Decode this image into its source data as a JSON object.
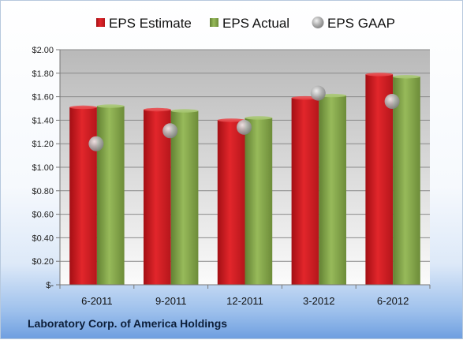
{
  "chart_data": {
    "type": "bar",
    "title": "",
    "xlabel": "",
    "ylabel": "",
    "categories": [
      "6-2011",
      "9-2011",
      "12-2011",
      "3-2012",
      "6-2012"
    ],
    "series": [
      {
        "name": "EPS Estimate",
        "kind": "bar",
        "color": "#cc1a1f",
        "values": [
          1.51,
          1.49,
          1.4,
          1.59,
          1.79
        ]
      },
      {
        "name": "EPS Actual",
        "kind": "bar",
        "color": "#7fa046",
        "values": [
          1.52,
          1.48,
          1.42,
          1.61,
          1.77
        ]
      },
      {
        "name": "EPS GAAP",
        "kind": "marker",
        "color": "#a9a9a9",
        "values": [
          1.2,
          1.31,
          1.34,
          1.63,
          1.56
        ]
      }
    ],
    "ylim": [
      0,
      2.0
    ],
    "yticks": [
      "$-",
      "$0.20",
      "$0.40",
      "$0.60",
      "$0.80",
      "$1.00",
      "$1.20",
      "$1.40",
      "$1.60",
      "$1.80",
      "$2.00"
    ],
    "grid": true,
    "legend_position": "top"
  },
  "footer": {
    "company": "Laboratory Corp. of America Holdings"
  }
}
